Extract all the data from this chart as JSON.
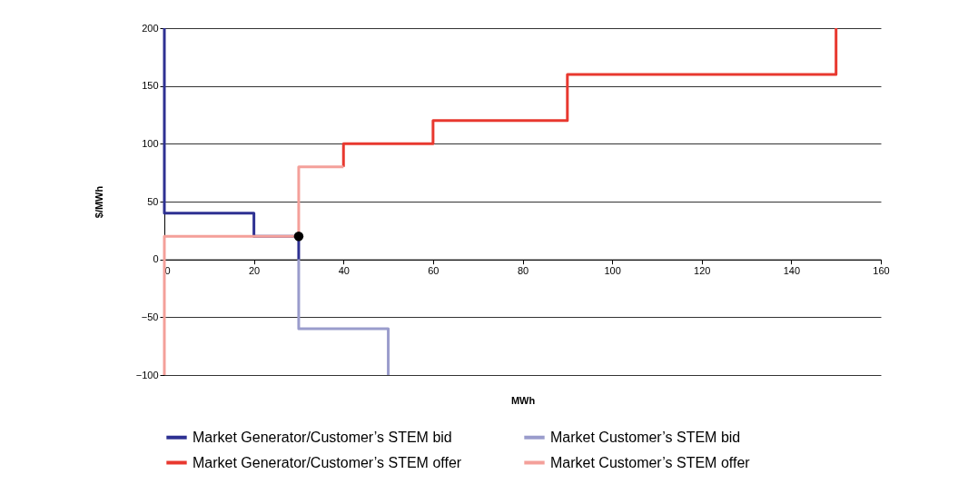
{
  "chart_data": {
    "type": "line",
    "xlabel": "MWh",
    "ylabel": "$/MWh",
    "xlim": [
      0,
      160
    ],
    "xticks": [
      0,
      20,
      40,
      60,
      80,
      100,
      120,
      140,
      160
    ],
    "ylim": [
      -100,
      200
    ],
    "yticks": [
      -100,
      -50,
      0,
      50,
      100,
      150,
      200
    ],
    "grid": "y",
    "marker": "none",
    "line_style": "solid",
    "legend": "bottom",
    "series": [
      {
        "name": "Market Generator/Customer’s STEM bid",
        "color": "#2e3192",
        "x": [
          0,
          0,
          20,
          20,
          30,
          30
        ],
        "values": [
          200,
          40,
          40,
          20,
          20,
          0
        ]
      },
      {
        "name": "Market Customer’s STEM bid",
        "color": "#9a9ccc",
        "x": [
          30,
          30,
          50,
          50
        ],
        "values": [
          0,
          -60,
          -60,
          -100
        ]
      },
      {
        "name": "Market Generator/Customer’s STEM offer",
        "color": "#e8382f",
        "x": [
          40,
          40,
          60,
          60,
          90,
          90,
          150,
          150
        ],
        "values": [
          80,
          100,
          100,
          120,
          120,
          160,
          160,
          200
        ]
      },
      {
        "name": "Market Customer’s STEM offer",
        "color": "#f4a09a",
        "x": [
          0,
          0,
          30,
          30,
          40
        ],
        "values": [
          -100,
          20,
          20,
          80,
          80
        ]
      },
      {
        "type": "scatter",
        "color": "#000000",
        "marker": "circle",
        "x": [
          30
        ],
        "values": [
          20
        ]
      }
    ]
  }
}
